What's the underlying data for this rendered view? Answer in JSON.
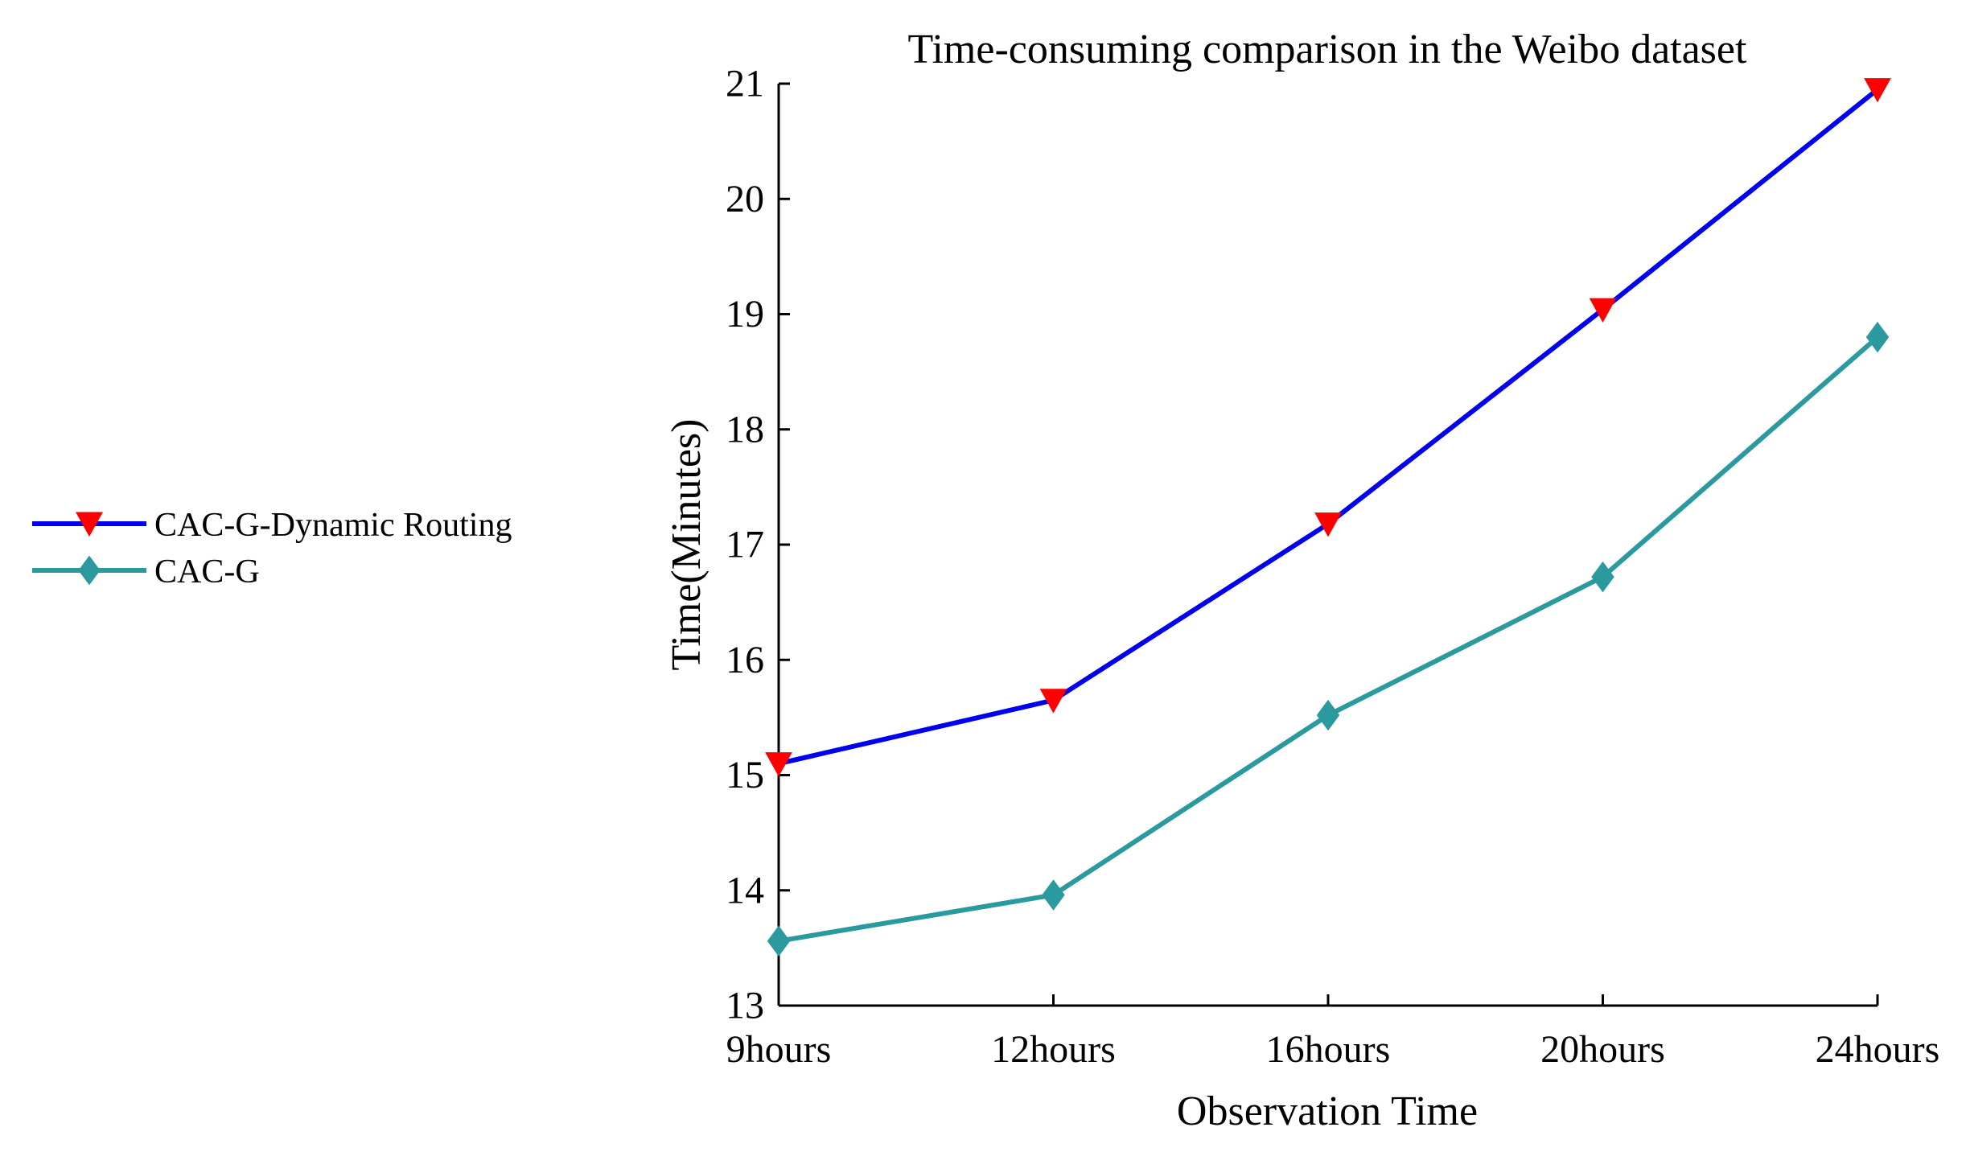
{
  "chart_data": {
    "type": "line",
    "title": "Time-consuming comparison in the Weibo dataset",
    "xlabel": "Observation Time",
    "ylabel": "Time(Minutes)",
    "categories": [
      "9hours",
      "12hours",
      "16hours",
      "20hours",
      "24hours"
    ],
    "ylim": [
      13,
      21
    ],
    "yticks": [
      13,
      14,
      15,
      16,
      17,
      18,
      19,
      20,
      21
    ],
    "grid": false,
    "legend_position": "left",
    "series": [
      {
        "name": "CAC-G-Dynamic Routing",
        "values": [
          15.1,
          15.65,
          17.18,
          19.04,
          20.95
        ],
        "color": "#0000ee",
        "marker": "triangle-down",
        "marker_color": "#ff0000"
      },
      {
        "name": "CAC-G",
        "values": [
          13.56,
          13.96,
          15.52,
          16.72,
          18.8
        ],
        "color": "#2a9a9f",
        "marker": "diamond",
        "marker_color": "#2a9a9f"
      }
    ]
  }
}
